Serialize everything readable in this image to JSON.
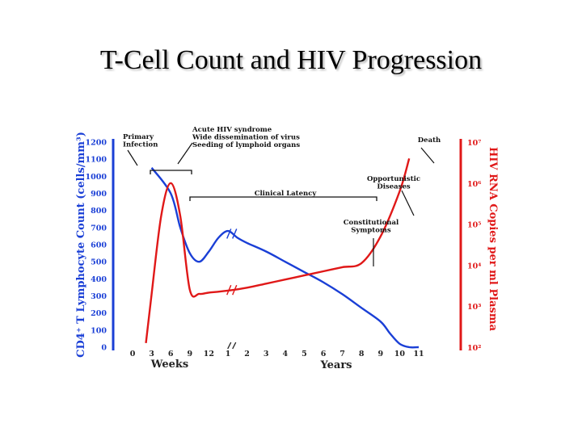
{
  "slide": {
    "title": "T-Cell Count and HIV Progression"
  },
  "chart_data": {
    "type": "line",
    "xlabel_left": "Weeks",
    "xlabel_right": "Years",
    "x_ticks_weeks": [
      "0",
      "3",
      "6",
      "9",
      "12"
    ],
    "x_ticks_years": [
      "1",
      "2",
      "3",
      "4",
      "5",
      "6",
      "7",
      "8",
      "9",
      "10",
      "11"
    ],
    "y_left": {
      "label": "CD4⁺ T Lymphocyte Count (cells/mm³)",
      "ticks": [
        "0",
        "100",
        "200",
        "300",
        "400",
        "500",
        "600",
        "700",
        "800",
        "900",
        "1000",
        "1100",
        "1200"
      ],
      "range": [
        0,
        1200
      ],
      "color": "#1a3fd6"
    },
    "y_right": {
      "label": "HIV RNA Copies per ml Plasma",
      "ticks": [
        "10²",
        "10³",
        "10⁴",
        "10⁵",
        "10⁶",
        "10⁷"
      ],
      "range_log10": [
        2,
        7
      ],
      "color": "#e01818"
    },
    "x_positions": [
      "0",
      "3",
      "6",
      "9",
      "12",
      "1",
      "2",
      "3",
      "4",
      "5",
      "6",
      "7",
      "8",
      "9",
      "10",
      "11"
    ],
    "series": [
      {
        "axis": "left",
        "color": "#1a3fd6",
        "points": [
          [
            1,
            1050
          ],
          [
            2,
            900
          ],
          [
            2.5,
            700
          ],
          [
            3,
            550
          ],
          [
            3.5,
            500
          ],
          [
            4,
            560
          ],
          [
            4.5,
            640
          ],
          [
            5,
            680
          ],
          [
            5.5,
            640
          ],
          [
            6,
            610
          ],
          [
            7,
            560
          ],
          [
            8,
            500
          ],
          [
            9,
            440
          ],
          [
            10,
            380
          ],
          [
            11,
            310
          ],
          [
            12,
            230
          ],
          [
            13,
            150
          ],
          [
            13.5,
            80
          ],
          [
            14,
            20
          ],
          [
            14.5,
            0
          ],
          [
            15,
            0
          ]
        ]
      },
      {
        "axis": "right",
        "color": "#e01818",
        "points": [
          [
            0.7,
            2.1
          ],
          [
            1,
            3.3
          ],
          [
            1.5,
            5.2
          ],
          [
            2,
            6.0
          ],
          [
            2.5,
            5.2
          ],
          [
            3,
            3.4
          ],
          [
            3.5,
            3.3
          ],
          [
            4,
            3.33
          ],
          [
            5,
            3.38
          ],
          [
            6,
            3.45
          ],
          [
            7,
            3.55
          ],
          [
            8,
            3.65
          ],
          [
            9,
            3.75
          ],
          [
            10,
            3.85
          ],
          [
            11,
            3.95
          ],
          [
            12,
            4.05
          ],
          [
            13,
            4.7
          ],
          [
            14,
            5.8
          ],
          [
            14.5,
            6.6
          ]
        ]
      }
    ],
    "annotations": [
      {
        "lines": [
          "Primary",
          "Infection"
        ]
      },
      {
        "lines": [
          "Acute HIV syndrome",
          "Wide dissemination of virus",
          "Seeding of lymphoid organs"
        ]
      },
      {
        "lines": [
          "Clinical Latency"
        ]
      },
      {
        "lines": [
          "Constitutional",
          "Symptoms"
        ]
      },
      {
        "lines": [
          "Opportunistic",
          "Diseases"
        ]
      },
      {
        "lines": [
          "Death"
        ]
      }
    ]
  }
}
